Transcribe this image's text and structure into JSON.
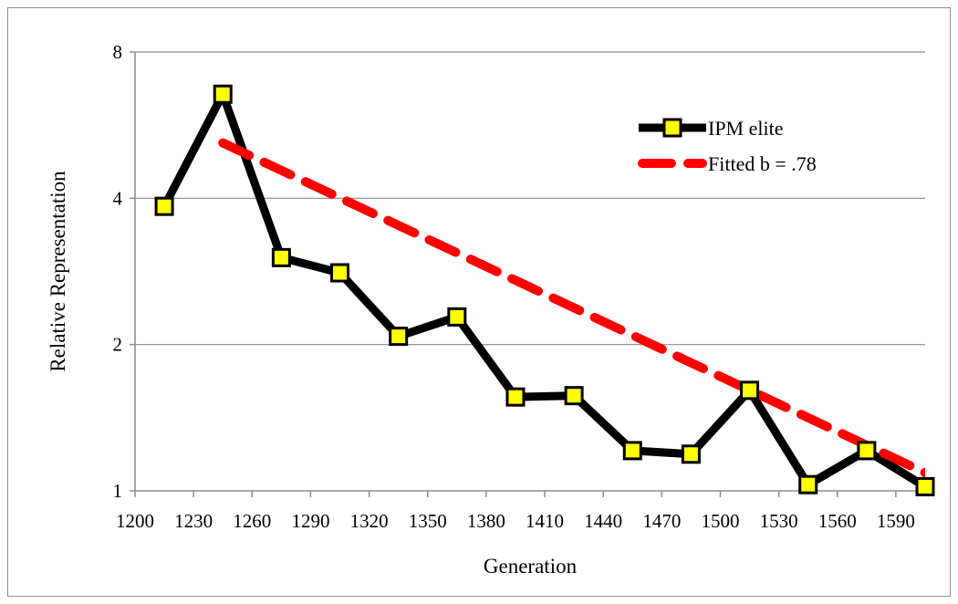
{
  "chart_data": {
    "type": "line",
    "title": "",
    "xlabel": "Generation",
    "ylabel": "Relative Representation",
    "xlim": [
      1200,
      1605
    ],
    "ylim": [
      1,
      8
    ],
    "y_scale": "log2",
    "x_ticks": [
      1200,
      1230,
      1260,
      1290,
      1320,
      1350,
      1380,
      1410,
      1440,
      1470,
      1500,
      1530,
      1560,
      1590
    ],
    "y_ticks": [
      1,
      2,
      4,
      8
    ],
    "grid": "horizontal",
    "legend": "top-right",
    "series": [
      {
        "name": "IPM elite",
        "color": "#000000",
        "marker": "square",
        "marker_color": "#ffff00",
        "x": [
          1215,
          1245,
          1275,
          1305,
          1335,
          1365,
          1395,
          1425,
          1455,
          1485,
          1515,
          1545,
          1575,
          1605
        ],
        "y": [
          3.85,
          6.55,
          3.02,
          2.81,
          2.08,
          2.28,
          1.56,
          1.57,
          1.21,
          1.19,
          1.61,
          1.03,
          1.21,
          1.02
        ]
      },
      {
        "name": "Fitted b = .78",
        "color": "#ff0000",
        "dashed": true,
        "x": [
          1245,
          1605
        ],
        "y": [
          5.2,
          1.09
        ],
        "fit_b": 0.78
      }
    ]
  }
}
